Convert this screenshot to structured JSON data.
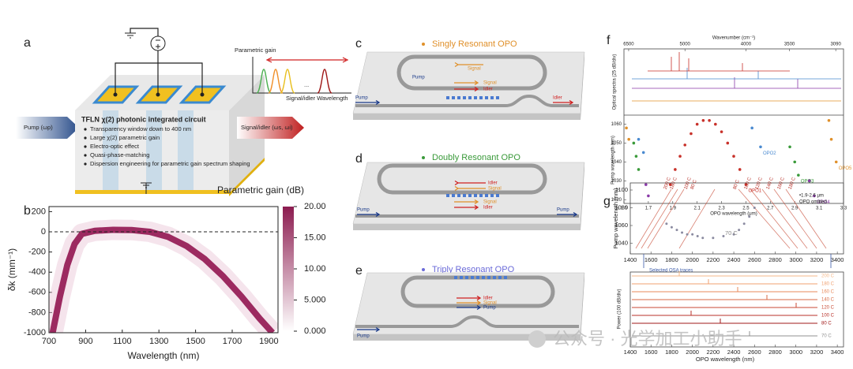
{
  "a": {
    "label": "a",
    "title": "TFLN χ(2) photonic integrated circuit",
    "bullets": [
      "Transparency window down to 400 nm",
      "Large χ(2) parametric gain",
      "Electro-optic effect",
      "Quasi-phase-matching",
      "Dispersion engineering for parametric gain spectrum shaping"
    ],
    "input": "Pump (ωp)",
    "output": "Signal/idler (ωs, ωi)",
    "gain_ylabel": "Parametric gain",
    "gain_xlabel": "Signal/idler Wavelength",
    "dots": "..."
  },
  "b": {
    "label": "b",
    "xlabel": "Wavelength (nm)",
    "ylabel": "δk (mm⁻¹)",
    "xlim": [
      700,
      1950
    ],
    "xticks": [
      700,
      900,
      1100,
      1300,
      1500,
      1700,
      1900
    ],
    "ylim": [
      -1000,
      250
    ],
    "yticks": [
      200,
      0,
      -200,
      -400,
      -600,
      -800,
      -1000
    ],
    "reference_line": 0,
    "curve": {
      "x": [
        720,
        760,
        800,
        840,
        880,
        950,
        1050,
        1150,
        1250,
        1350,
        1450,
        1550,
        1650,
        1750,
        1850,
        1920
      ],
      "y": [
        -1000,
        -640,
        -330,
        -120,
        -20,
        10,
        20,
        18,
        0,
        -50,
        -140,
        -270,
        -440,
        -640,
        -860,
        -1000
      ]
    },
    "colorbar_title": "Parametric gain (dB)",
    "colorbar_lim": [
      0,
      20
    ],
    "colorbar_ticks": [
      {
        "value": 20,
        "label": "20.00"
      },
      {
        "value": 15,
        "label": "15.00"
      },
      {
        "value": 10,
        "label": "10.00"
      },
      {
        "value": 5,
        "label": "5.000"
      },
      {
        "value": 0,
        "label": "0.000"
      }
    ]
  },
  "c": {
    "label": "c",
    "title": "Singly Resonant OPO",
    "texts": [
      "Pump",
      "Signal",
      "Signal",
      "Idler",
      "Pump",
      "Idler"
    ]
  },
  "d": {
    "label": "d",
    "title": "Doubly Resonant OPO",
    "texts": [
      "Idler",
      "Signal",
      "Signal",
      "Idler",
      "Pump",
      "Pump"
    ]
  },
  "e": {
    "label": "e",
    "title": "Triply Resonant OPO",
    "texts": [
      "Idler",
      "Signal",
      "Pump",
      "Pump"
    ]
  },
  "f": {
    "label": "f",
    "top_xlabel": "Wavenumber (cm⁻¹)",
    "top_xticks": [
      6500,
      5000,
      4000,
      3500,
      3090
    ],
    "xlabel": "OPO wavelength (μm)",
    "xlim": [
      1.5,
      3.3
    ],
    "xticks": [
      1.5,
      1.7,
      1.9,
      2.1,
      2.3,
      2.5,
      2.7,
      2.9,
      3.1,
      3.3
    ],
    "ylabel": "Pump wavelength (nm)",
    "ylim": [
      1018,
      1064
    ],
    "yticks": [
      1020,
      1030,
      1040,
      1050,
      1060
    ],
    "spectra_ylabel": "Optical spectra (25 dB/div)",
    "series": [
      {
        "name": "OPO1",
        "color": "#c8312a",
        "x": [
          1.88,
          1.92,
          1.96,
          2.0,
          2.05,
          2.1,
          2.15,
          2.2,
          2.25,
          2.3,
          2.35,
          2.4,
          2.45,
          2.5
        ],
        "y": [
          1028,
          1036,
          1043,
          1049,
          1055,
          1060,
          1062,
          1062,
          1060,
          1056,
          1050,
          1043,
          1036,
          1028
        ]
      },
      {
        "name": "OPO2",
        "color": "#4a8ad0",
        "x": [
          1.62,
          1.66,
          2.55,
          2.62
        ],
        "y": [
          1052,
          1045,
          1058,
          1048
        ]
      },
      {
        "name": "OPO3",
        "color": "#3a9a3a",
        "x": [
          1.58,
          1.6,
          1.62,
          2.86,
          2.9,
          2.93
        ],
        "y": [
          1050,
          1043,
          1036,
          1048,
          1040,
          1033
        ]
      },
      {
        "name": "OPO4",
        "color": "#8a3aa8",
        "x": [
          1.68,
          1.7,
          3.02,
          3.06
        ],
        "y": [
          1028,
          1022,
          1030,
          1022
        ]
      },
      {
        "name": "OPO5",
        "color": "#e0902a",
        "x": [
          1.52,
          1.54,
          3.18,
          3.2,
          3.24
        ],
        "y": [
          1058,
          1052,
          1062,
          1052,
          1040
        ]
      }
    ]
  },
  "g": {
    "label": "g",
    "ylabel": "Pump wavelength (nm)",
    "xlim": [
      1400,
      3460
    ],
    "xticks": [
      1400,
      1600,
      1800,
      2000,
      2200,
      2400,
      2600,
      2800,
      3000,
      3200,
      3400
    ],
    "ylim": [
      1028,
      1108
    ],
    "yticks": [
      1040,
      1060,
      1080,
      1100
    ],
    "points": {
      "name": "70 C",
      "x": [
        1750,
        1800,
        1850,
        1900,
        1950,
        2000,
        2050,
        2100,
        2200,
        2300,
        2400,
        2450,
        2500,
        2550,
        2600
      ],
      "y": [
        1062,
        1058,
        1055,
        1052,
        1050,
        1050,
        1048,
        1046,
        1046,
        1048,
        1050,
        1055,
        1062,
        1070,
        1080
      ]
    },
    "annotation": [
      "•1.9-2.6 μm",
      "OPO omitted"
    ],
    "osa_label": "Selected OSA traces",
    "power_ylabel": "Power (100 dB/div)",
    "xlabel": "OPO wavelength (nm)",
    "top_temps": [
      "200 C",
      "180 C",
      "100 C",
      "80 C",
      "80 C",
      "100 C",
      "120 C",
      "140 C",
      "160 C",
      "180 C"
    ],
    "traces": [
      {
        "name": "200 C",
        "color": "#f6b98a"
      },
      {
        "name": "180 C",
        "color": "#f0a070"
      },
      {
        "name": "160 C",
        "color": "#e88858"
      },
      {
        "name": "140 C",
        "color": "#d86a44"
      },
      {
        "name": "120 C",
        "color": "#c84a34"
      },
      {
        "name": "100 C",
        "color": "#b83028"
      },
      {
        "name": "80 C",
        "color": "#a01818"
      },
      {
        "name": "70 C",
        "color": "#909090"
      }
    ]
  },
  "watermark": "公众号 · 光学加工小助手"
}
